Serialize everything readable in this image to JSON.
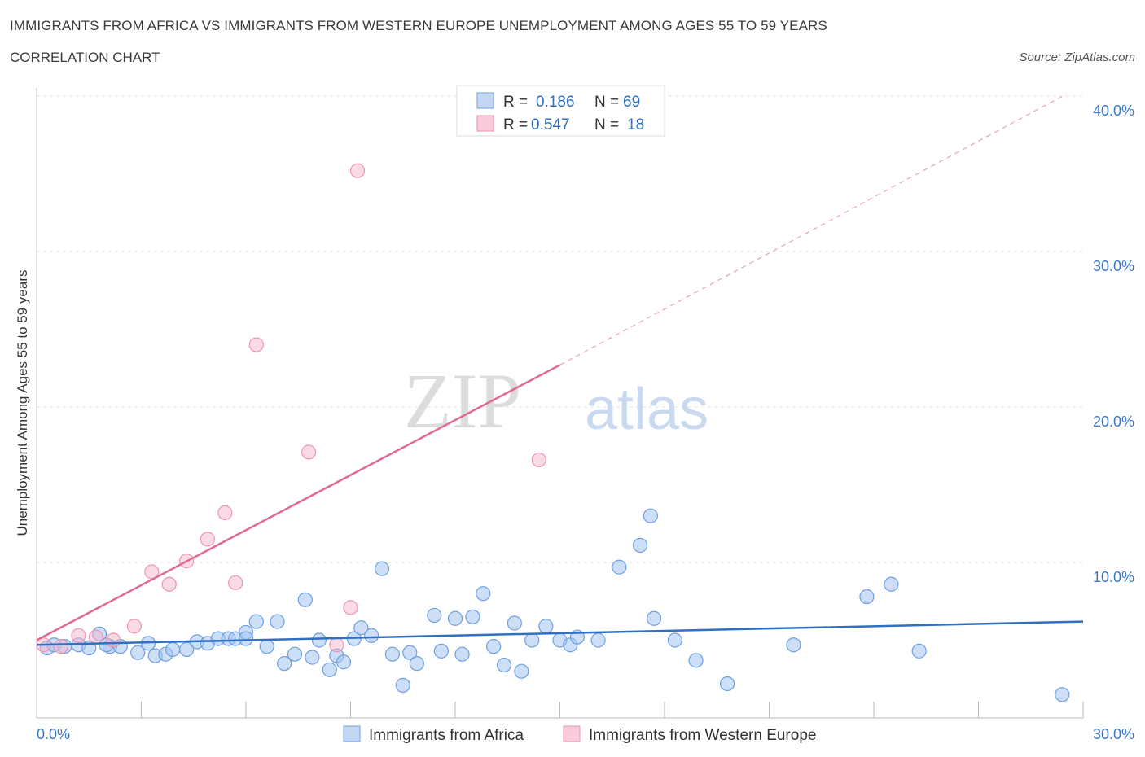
{
  "header": {
    "title": "IMMIGRANTS FROM AFRICA VS IMMIGRANTS FROM WESTERN EUROPE UNEMPLOYMENT AMONG AGES 55 TO 59 YEARS",
    "subtitle": "CORRELATION CHART",
    "source": "Source: ZipAtlas.com"
  },
  "watermark": {
    "zip": "ZIP",
    "atlas": "atlas"
  },
  "legend": {
    "r_label": "R =",
    "n_label": "N =",
    "rows": [
      {
        "r": "0.186",
        "n": "69"
      },
      {
        "r": "0.547",
        "n": "18"
      }
    ]
  },
  "chart_data": {
    "type": "scatter",
    "title": "IMMIGRANTS FROM AFRICA VS IMMIGRANTS FROM WESTERN EUROPE UNEMPLOYMENT AMONG AGES 55 TO 59 YEARS",
    "subtitle": "CORRELATION CHART",
    "xlabel": "",
    "ylabel": "Unemployment Among Ages 55 to 59 years",
    "xlim": [
      0,
      30
    ],
    "ylim": [
      0,
      40
    ],
    "x_tick_labels": [
      "0.0%",
      "30.0%"
    ],
    "y_ticks": [
      10,
      20,
      30,
      40
    ],
    "y_tick_labels": [
      "10.0%",
      "20.0%",
      "30.0%",
      "40.0%"
    ],
    "grid": true,
    "legend_position": "top-center",
    "colors": {
      "africa": "#6f9fe0",
      "western_europe": "#ee94b2",
      "africa_line": "#2f6fc4",
      "western_europe_line": "#e06a93"
    },
    "series": [
      {
        "name": "Immigrants from Africa",
        "r": 0.186,
        "n": 69,
        "trend": {
          "x": [
            0,
            30
          ],
          "y": [
            4.7,
            6.2
          ]
        },
        "points": [
          [
            0.3,
            4.5
          ],
          [
            0.5,
            4.7
          ],
          [
            0.8,
            4.6
          ],
          [
            1.2,
            4.7
          ],
          [
            1.5,
            4.5
          ],
          [
            1.8,
            5.4
          ],
          [
            2.1,
            4.6
          ],
          [
            2.4,
            4.6
          ],
          [
            2.9,
            4.2
          ],
          [
            3.2,
            4.8
          ],
          [
            3.4,
            4.0
          ],
          [
            3.7,
            4.1
          ],
          [
            3.9,
            4.4
          ],
          [
            4.3,
            4.4
          ],
          [
            4.6,
            4.9
          ],
          [
            4.9,
            4.8
          ],
          [
            5.2,
            5.1
          ],
          [
            5.5,
            5.1
          ],
          [
            5.7,
            5.1
          ],
          [
            6.0,
            5.5
          ],
          [
            6.3,
            6.2
          ],
          [
            6.6,
            4.6
          ],
          [
            6.9,
            6.2
          ],
          [
            7.1,
            3.5
          ],
          [
            7.4,
            4.1
          ],
          [
            7.7,
            7.6
          ],
          [
            7.9,
            3.9
          ],
          [
            8.1,
            5.0
          ],
          [
            8.4,
            3.1
          ],
          [
            8.6,
            4.0
          ],
          [
            8.8,
            3.6
          ],
          [
            9.1,
            5.1
          ],
          [
            9.3,
            5.8
          ],
          [
            9.6,
            5.3
          ],
          [
            9.9,
            9.6
          ],
          [
            10.2,
            4.1
          ],
          [
            10.5,
            2.1
          ],
          [
            10.7,
            4.2
          ],
          [
            10.9,
            3.5
          ],
          [
            11.4,
            6.6
          ],
          [
            11.6,
            4.3
          ],
          [
            12.0,
            6.4
          ],
          [
            12.2,
            4.1
          ],
          [
            12.5,
            6.5
          ],
          [
            12.8,
            8.0
          ],
          [
            13.1,
            4.6
          ],
          [
            13.4,
            3.4
          ],
          [
            13.7,
            6.1
          ],
          [
            13.9,
            3.0
          ],
          [
            14.2,
            5.0
          ],
          [
            14.6,
            5.9
          ],
          [
            15.0,
            5.0
          ],
          [
            15.3,
            4.7
          ],
          [
            15.5,
            5.2
          ],
          [
            16.1,
            5.0
          ],
          [
            16.7,
            9.7
          ],
          [
            17.3,
            11.1
          ],
          [
            17.6,
            13.0
          ],
          [
            17.7,
            6.4
          ],
          [
            18.3,
            5.0
          ],
          [
            18.9,
            3.7
          ],
          [
            19.8,
            2.2
          ],
          [
            21.7,
            4.7
          ],
          [
            23.8,
            7.8
          ],
          [
            24.5,
            8.6
          ],
          [
            25.3,
            4.3
          ],
          [
            29.4,
            1.5
          ],
          [
            2.0,
            4.7
          ],
          [
            6.0,
            5.1
          ]
        ]
      },
      {
        "name": "Immigrants from Western Europe",
        "r": 0.547,
        "n": 18,
        "trend": {
          "x": [
            0,
            15
          ],
          "y": [
            5.0,
            22.7
          ]
        },
        "trend_extension": {
          "x": [
            15,
            29.5
          ],
          "y": [
            22.7,
            40.1
          ]
        },
        "points": [
          [
            0.2,
            4.7
          ],
          [
            0.7,
            4.6
          ],
          [
            1.2,
            5.3
          ],
          [
            1.7,
            5.2
          ],
          [
            2.2,
            5.0
          ],
          [
            2.8,
            5.9
          ],
          [
            3.3,
            9.4
          ],
          [
            3.8,
            8.6
          ],
          [
            4.3,
            10.1
          ],
          [
            4.9,
            11.5
          ],
          [
            5.4,
            13.2
          ],
          [
            5.7,
            8.7
          ],
          [
            6.3,
            24.0
          ],
          [
            7.8,
            17.1
          ],
          [
            8.6,
            4.7
          ],
          [
            9.0,
            7.1
          ],
          [
            9.2,
            35.2
          ],
          [
            14.4,
            16.6
          ]
        ]
      }
    ]
  }
}
